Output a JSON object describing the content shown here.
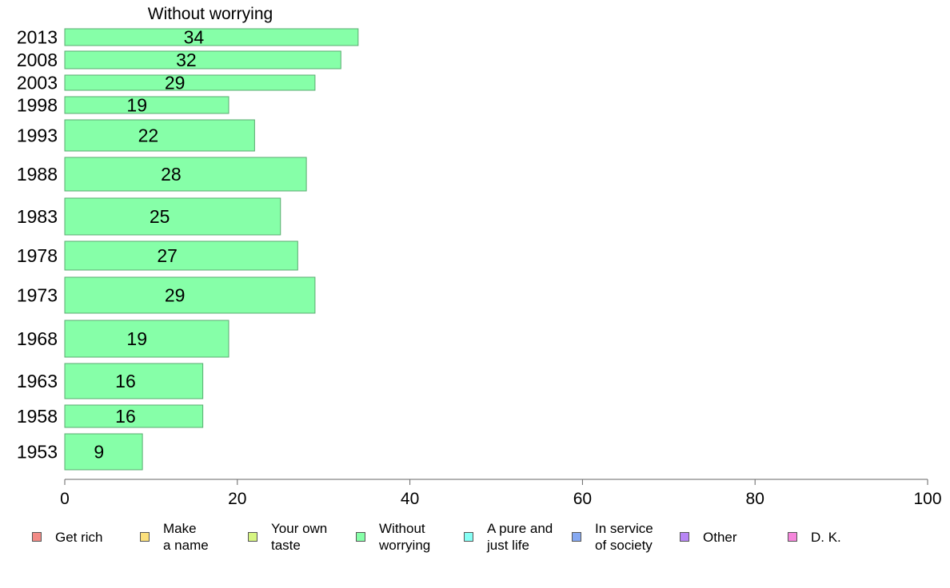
{
  "chart_data": {
    "type": "bar",
    "orientation": "horizontal",
    "title": "Without worrying",
    "categories": [
      "2013",
      "2008",
      "2003",
      "1998",
      "1993",
      "1988",
      "1983",
      "1978",
      "1973",
      "1968",
      "1963",
      "1958",
      "1953"
    ],
    "values": [
      34,
      32,
      29,
      19,
      22,
      28,
      25,
      27,
      29,
      19,
      16,
      16,
      9
    ],
    "xlim": [
      0,
      100
    ],
    "xticks": [
      "0",
      "20",
      "40",
      "60",
      "80",
      "100"
    ],
    "grid": false,
    "legend_position": "bottom",
    "legend": [
      {
        "label": "Get rich",
        "color": "#f28b86"
      },
      {
        "label": "Make\na name",
        "color": "#fbe07c"
      },
      {
        "label": "Your own\ntaste",
        "color": "#d6f582"
      },
      {
        "label": "Without\nworrying",
        "color": "#86ffa8"
      },
      {
        "label": "A pure and\njust life",
        "color": "#86fff5"
      },
      {
        "label": "In service\nof society",
        "color": "#86a9f2"
      },
      {
        "label": "Other",
        "color": "#b886f5"
      },
      {
        "label": "D. K.",
        "color": "#f586db"
      }
    ],
    "bar_color": "#86ffa8",
    "bar_edge_color": "#5aab70"
  }
}
